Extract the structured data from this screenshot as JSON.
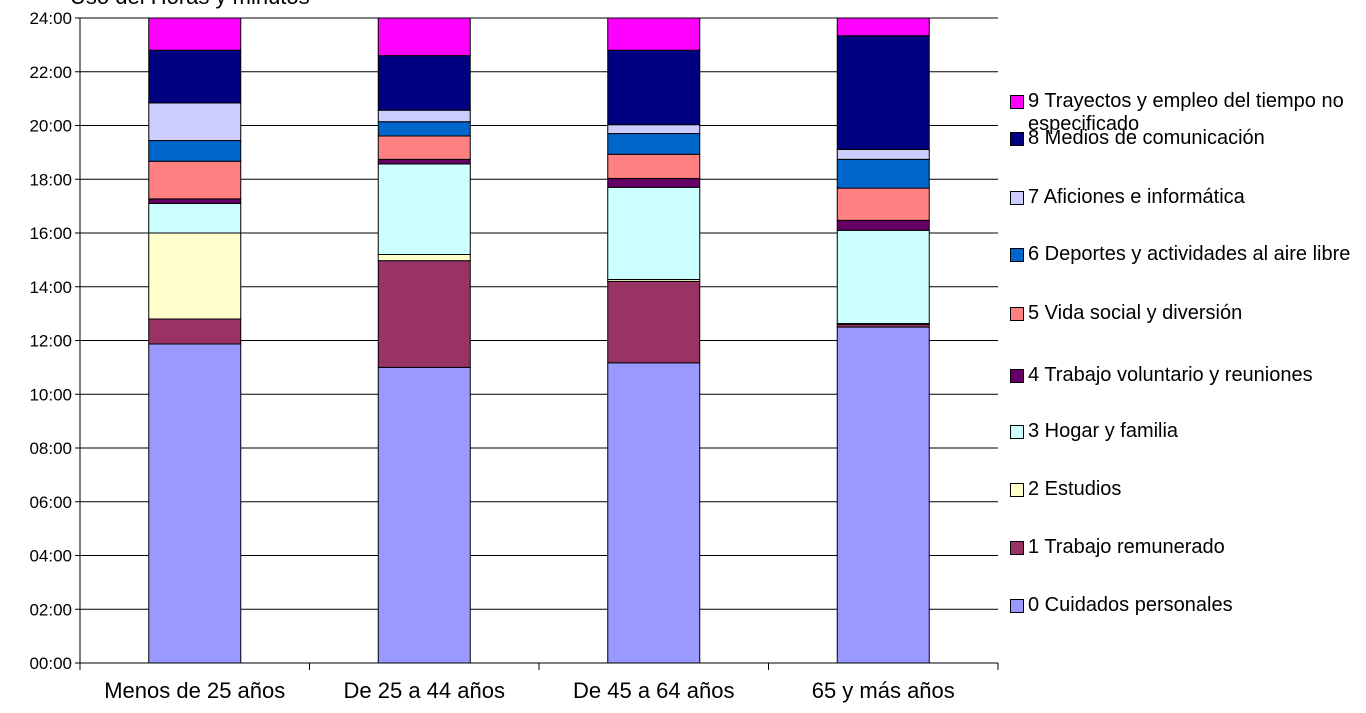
{
  "chart_data": {
    "type": "bar",
    "stacked": true,
    "title": "Uso del Horas y minutos",
    "xlabel": "",
    "ylabel": "",
    "ylim": [
      0,
      24
    ],
    "y_tick_labels": [
      "00:00",
      "02:00",
      "04:00",
      "06:00",
      "08:00",
      "10:00",
      "12:00",
      "14:00",
      "16:00",
      "18:00",
      "20:00",
      "22:00",
      "24:00"
    ],
    "grid": "horizontal",
    "legend_position": "right",
    "categories": [
      "Menos de 25 años",
      "De 25 a 44 años",
      "De 45 a 64 años",
      "65 y más años"
    ],
    "series": [
      {
        "name": "0 Cuidados personales",
        "color": "#9999ff",
        "values": [
          11.87,
          11.0,
          11.17,
          12.5
        ]
      },
      {
        "name": "1 Trabajo remunerado",
        "color": "#993366",
        "values": [
          0.93,
          3.97,
          3.03,
          0.1
        ]
      },
      {
        "name": "2 Estudios",
        "color": "#ffffcc",
        "values": [
          3.2,
          0.23,
          0.07,
          0.03
        ]
      },
      {
        "name": "3 Hogar y familia",
        "color": "#ccffff",
        "values": [
          1.1,
          3.37,
          3.43,
          3.47
        ]
      },
      {
        "name": "4 Trabajo voluntario y reuniones",
        "color": "#660066",
        "values": [
          0.17,
          0.17,
          0.33,
          0.37
        ]
      },
      {
        "name": "5 Vida social y diversión",
        "color": "#ff8080",
        "values": [
          1.4,
          0.87,
          0.9,
          1.2
        ]
      },
      {
        "name": "6 Deportes y actividades al aire libre",
        "color": "#0066cc",
        "values": [
          0.77,
          0.53,
          0.77,
          1.07
        ]
      },
      {
        "name": "7 Aficiones e informática",
        "color": "#ccccff",
        "values": [
          1.4,
          0.43,
          0.33,
          0.37
        ]
      },
      {
        "name": "8 Medios de comunicación",
        "color": "#000080",
        "values": [
          1.96,
          2.03,
          2.77,
          4.23
        ]
      },
      {
        "name": "9 Trayectos y empleo del tiempo no especificado",
        "color": "#ff00ff",
        "values": [
          1.2,
          1.4,
          1.2,
          0.66
        ]
      }
    ]
  },
  "legend": {
    "items": [
      {
        "label": "9 Trayectos y empleo del tiempo no especificado",
        "color": "#ff00ff"
      },
      {
        "label": "8 Medios de comunicación",
        "color": "#000080"
      },
      {
        "label": "7 Aficiones e informática",
        "color": "#ccccff"
      },
      {
        "label": "6 Deportes y actividades al aire libre",
        "color": "#0066cc"
      },
      {
        "label": "5 Vida social y diversión",
        "color": "#ff8080"
      },
      {
        "label": "4 Trabajo voluntario y reuniones",
        "color": "#660066"
      },
      {
        "label": "3 Hogar y familia",
        "color": "#ccffff"
      },
      {
        "label": "2 Estudios",
        "color": "#ffffcc"
      },
      {
        "label": "1 Trabajo remunerado",
        "color": "#993366"
      },
      {
        "label": "0 Cuidados personales",
        "color": "#9999ff"
      }
    ]
  }
}
